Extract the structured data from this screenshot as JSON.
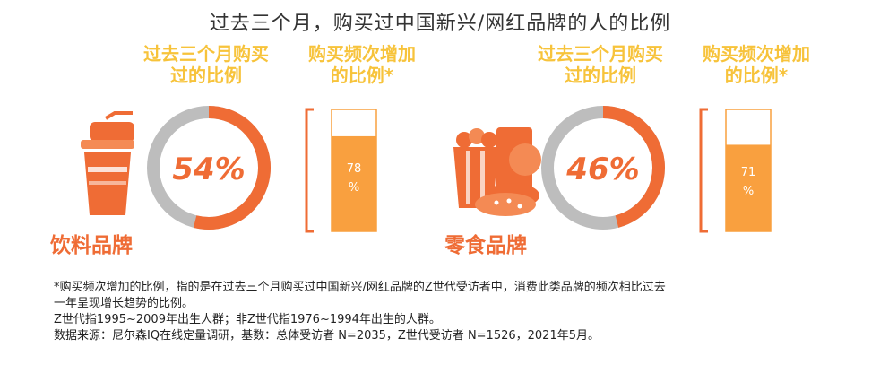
{
  "title": "过去三个月，购买过中国新兴/网红品牌的人的比例",
  "chart_data": [
    {
      "type": "donut",
      "category": "饮料品牌",
      "ring_label": "过去三个月购买\n过的比例",
      "value_text": "54%",
      "value": 54,
      "bar_label": "购买频次增加\n的比例*",
      "bar_value": 78,
      "bar_text_top": "78",
      "bar_text_bottom": "%"
    },
    {
      "type": "donut",
      "category": "零食品牌",
      "ring_label": "过去三个月购买\n过的比例",
      "value_text": "46%",
      "value": 46,
      "bar_label": "购买频次增加\n的比例*",
      "bar_value": 71,
      "bar_text_top": "71",
      "bar_text_bottom": "%"
    }
  ],
  "colors": {
    "accent": "#ef6c35",
    "gray": "#bdbdbd",
    "bar": "#f9a03f",
    "label": "#f7c33b"
  },
  "icons": [
    "drink-cup-icon",
    "snack-food-icon"
  ],
  "footer": {
    "line1": "*购买频次增加的比例，指的是在过去三个月购买过中国新兴/网红品牌的Z世代受访者中，消费此类品牌的频次相比过去",
    "line2": "一年呈现增长趋势的比例。",
    "line3": "Z世代指1995~2009年出生人群；非Z世代指1976~1994年出生的人群。",
    "line4": "数据来源：尼尔森IQ在线定量调研，基数：总体受访者 N=2035，Z世代受访者 N=1526，2021年5月。"
  }
}
